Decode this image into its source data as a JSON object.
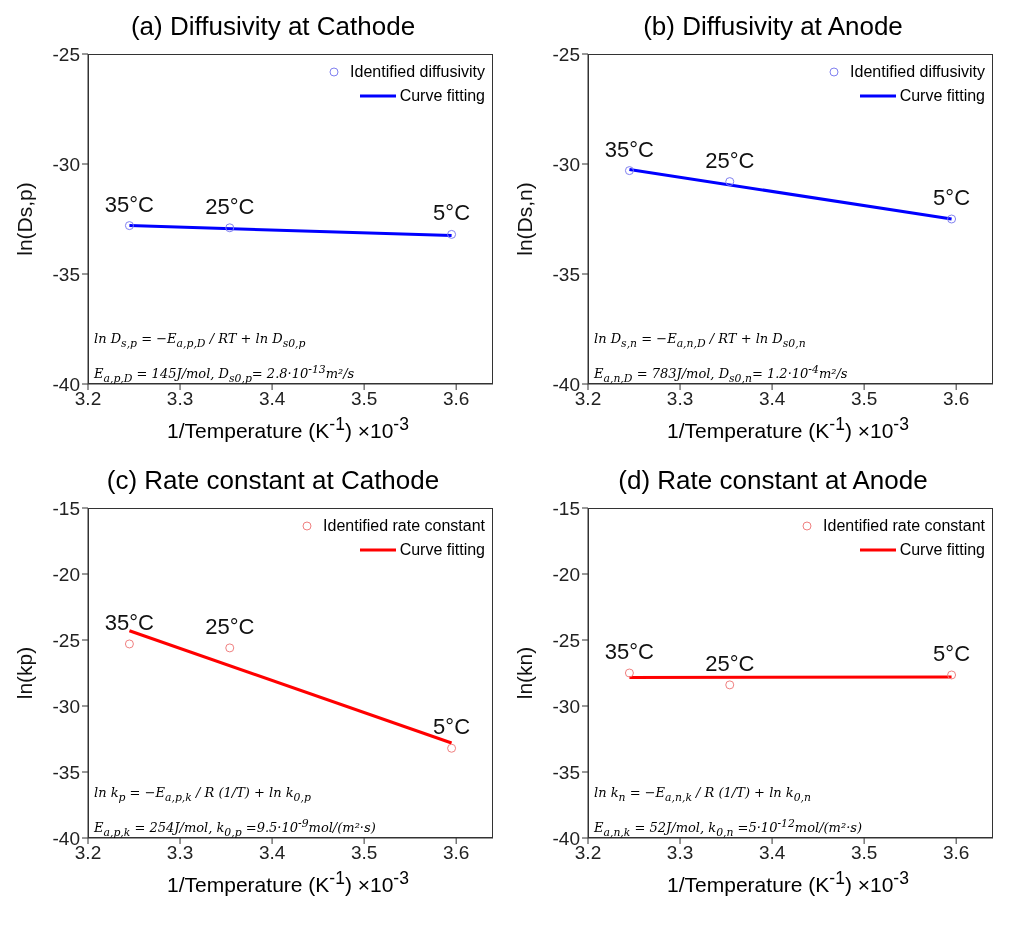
{
  "chart_data": [
    {
      "type": "scatter",
      "title": "(a) Diffusivity at Cathode",
      "xlabel": "1/Temperature (K$^{-1}$) ×10$^{-3}$",
      "ylabel": "ln(Ds,p)",
      "xlim": [
        3.2,
        3.64
      ],
      "xticks": [
        3.2,
        3.3,
        3.4,
        3.5,
        3.6
      ],
      "ylim": [
        -40,
        -25
      ],
      "yticks": [
        -40,
        -35,
        -30,
        -25
      ],
      "legend": "top right",
      "series": [
        {
          "name": "Identified diffusivity",
          "marker": "circle",
          "color": "#8080f0",
          "x": [
            3.245,
            3.354,
            3.595
          ],
          "values": [
            -32.8,
            -32.9,
            -33.2
          ]
        },
        {
          "name": "Curve fitting",
          "type": "line",
          "marker": "none",
          "color": "#0000ff",
          "x": [
            3.245,
            3.595
          ],
          "values": [
            -32.8,
            -33.25
          ]
        }
      ],
      "annotations": [
        {
          "text": "35°C",
          "x": 3.245,
          "y": -32.8
        },
        {
          "text": "25°C",
          "x": 3.354,
          "y": -32.9
        },
        {
          "text": "5°C",
          "x": 3.595,
          "y": -33.2
        },
        "ln D$_{s,p}$ = −E$_{a,p,D}$ / RT + ln D$_{s0,p}$",
        "E$_{a,p,D}$ = 145J/mol, D$_{s0,p}$= 2.8·10$^{-13}$m²/s"
      ]
    },
    {
      "type": "scatter",
      "title": "(b) Diffusivity at Anode",
      "xlabel": "1/Temperature (K$^{-1}$) ×10$^{-3}$",
      "ylabel": "ln(Ds,n)",
      "xlim": [
        3.2,
        3.64
      ],
      "xticks": [
        3.2,
        3.3,
        3.4,
        3.5,
        3.6
      ],
      "ylim": [
        -40,
        -25
      ],
      "yticks": [
        -40,
        -35,
        -30,
        -25
      ],
      "legend": "top right",
      "series": [
        {
          "name": "Identified diffusivity",
          "marker": "circle",
          "color": "#8080f0",
          "x": [
            3.245,
            3.354,
            3.595
          ],
          "values": [
            -30.3,
            -30.8,
            -32.5
          ]
        },
        {
          "name": "Curve fitting",
          "type": "line",
          "marker": "none",
          "color": "#0000ff",
          "x": [
            3.245,
            3.595
          ],
          "values": [
            -30.25,
            -32.5
          ]
        }
      ],
      "annotations": [
        {
          "text": "35°C",
          "x": 3.245,
          "y": -30.3
        },
        {
          "text": "25°C",
          "x": 3.354,
          "y": -30.8
        },
        {
          "text": "5°C",
          "x": 3.595,
          "y": -32.5
        },
        "ln D$_{s,n}$ = −E$_{a,n,D}$ / RT + ln D$_{s0,n}$",
        "E$_{a,n,D}$ = 783J/mol, D$_{s0,n}$= 1.2·10$^{-4}$m²/s"
      ]
    },
    {
      "type": "scatter",
      "title": "(c) Rate constant at Cathode",
      "xlabel": "1/Temperature (K$^{-1}$) ×10$^{-3}$",
      "ylabel": "ln(kp)",
      "xlim": [
        3.2,
        3.64
      ],
      "xticks": [
        3.2,
        3.3,
        3.4,
        3.5,
        3.6
      ],
      "ylim": [
        -40,
        -15
      ],
      "yticks": [
        -40,
        -35,
        -30,
        -25,
        -20,
        -15
      ],
      "legend": "top right",
      "series": [
        {
          "name": "Identified rate constant",
          "marker": "circle",
          "color": "#f08080",
          "x": [
            3.245,
            3.354,
            3.595
          ],
          "values": [
            -25.3,
            -25.6,
            -33.2
          ]
        },
        {
          "name": "Curve fitting",
          "type": "line",
          "marker": "none",
          "color": "#ff0000",
          "x": [
            3.245,
            3.595
          ],
          "values": [
            -24.3,
            -32.8
          ]
        }
      ],
      "annotations": [
        {
          "text": "35°C",
          "x": 3.245,
          "y": -25.3
        },
        {
          "text": "25°C",
          "x": 3.354,
          "y": -25.6
        },
        {
          "text": "5°C",
          "x": 3.595,
          "y": -33.2
        },
        "ln k$_{p}$ = −E$_{a,p,k}$ / R (1/T) + ln k$_{0,p}$",
        "E$_{a,p,k}$ = 254J/mol, k$_{0,p}$ =9.5·10$^{-9}$mol/(m²·s)"
      ]
    },
    {
      "type": "scatter",
      "title": "(d) Rate constant at Anode",
      "xlabel": "1/Temperature (K$^{-1}$) ×10$^{-3}$",
      "ylabel": "ln(kn)",
      "xlim": [
        3.2,
        3.64
      ],
      "xticks": [
        3.2,
        3.3,
        3.4,
        3.5,
        3.6
      ],
      "ylim": [
        -40,
        -15
      ],
      "yticks": [
        -40,
        -35,
        -30,
        -25,
        -20,
        -15
      ],
      "legend": "top right",
      "series": [
        {
          "name": "Identified rate constant",
          "marker": "circle",
          "color": "#f08080",
          "x": [
            3.245,
            3.354,
            3.595
          ],
          "values": [
            -27.5,
            -28.4,
            -27.65
          ]
        },
        {
          "name": "Curve fitting",
          "type": "line",
          "marker": "none",
          "color": "#ff0000",
          "x": [
            3.245,
            3.595
          ],
          "values": [
            -27.85,
            -27.8
          ]
        }
      ],
      "annotations": [
        {
          "text": "35°C",
          "x": 3.245,
          "y": -27.5
        },
        {
          "text": "25°C",
          "x": 3.354,
          "y": -28.4
        },
        {
          "text": "5°C",
          "x": 3.595,
          "y": -27.65
        },
        "ln k$_{n}$ = −E$_{a,n,k}$ / R (1/T) + ln k$_{0,n}$",
        "E$_{a,n,k}$ = 52J/mol, k$_{0,n}$ =5·10$^{-12}$mol/(m²·s)"
      ]
    }
  ]
}
